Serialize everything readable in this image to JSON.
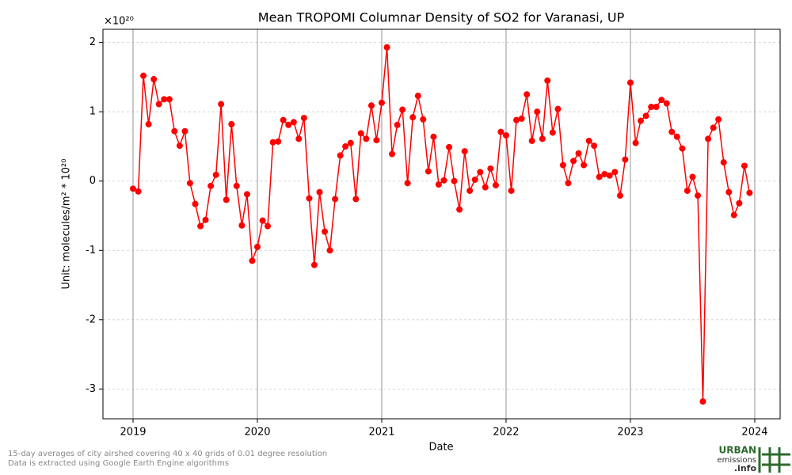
{
  "chart_data": {
    "type": "line",
    "title": "Mean TROPOMI Columnar Density of SO2 for Varanasi, UP",
    "x_label": "Date",
    "y_label": "Unit: molecules/m² * 10²⁰",
    "y_offset_label": "×10²⁰",
    "xlim": [
      2018.758,
      2024.204
    ],
    "xticks": [
      2019,
      2020,
      2021,
      2022,
      2023,
      2024
    ],
    "ylim": [
      -3.43,
      2.19
    ],
    "yticks": [
      -3,
      -2,
      -1,
      0,
      1,
      2
    ],
    "grid": true,
    "x": [
      2019,
      2019.042,
      2019.083,
      2019.125,
      2019.167,
      2019.208,
      2019.25,
      2019.292,
      2019.333,
      2019.375,
      2019.417,
      2019.458,
      2019.5,
      2019.542,
      2019.583,
      2019.625,
      2019.667,
      2019.708,
      2019.75,
      2019.792,
      2019.833,
      2019.875,
      2019.917,
      2019.958,
      2020,
      2020.042,
      2020.083,
      2020.125,
      2020.167,
      2020.208,
      2020.25,
      2020.292,
      2020.333,
      2020.375,
      2020.417,
      2020.458,
      2020.5,
      2020.542,
      2020.583,
      2020.625,
      2020.667,
      2020.708,
      2020.75,
      2020.792,
      2020.833,
      2020.875,
      2020.917,
      2020.958,
      2021,
      2021.042,
      2021.083,
      2021.125,
      2021.167,
      2021.208,
      2021.25,
      2021.292,
      2021.333,
      2021.375,
      2021.417,
      2021.458,
      2021.5,
      2021.542,
      2021.583,
      2021.625,
      2021.667,
      2021.708,
      2021.75,
      2021.792,
      2021.833,
      2021.875,
      2021.917,
      2021.958,
      2022,
      2022.042,
      2022.083,
      2022.125,
      2022.167,
      2022.208,
      2022.25,
      2022.292,
      2022.333,
      2022.375,
      2022.417,
      2022.458,
      2022.5,
      2022.542,
      2022.583,
      2022.625,
      2022.667,
      2022.708,
      2022.75,
      2022.792,
      2022.833,
      2022.875,
      2022.917,
      2022.958,
      2023,
      2023.042,
      2023.083,
      2023.125,
      2023.167,
      2023.208,
      2023.25,
      2023.292,
      2023.333,
      2023.375,
      2023.417,
      2023.458,
      2023.5,
      2023.542,
      2023.583,
      2023.625,
      2023.667,
      2023.708,
      2023.75,
      2023.792,
      2023.833,
      2023.875,
      2023.917,
      2023.958
    ],
    "series": [
      {
        "color": "#ff0000",
        "values": [
          -0.11,
          -0.15,
          1.52,
          0.82,
          1.47,
          1.11,
          1.18,
          1.18,
          0.72,
          0.51,
          0.72,
          -0.03,
          -0.33,
          -0.65,
          -0.56,
          -0.07,
          0.09,
          1.11,
          -0.27,
          0.82,
          -0.07,
          -0.64,
          -0.19,
          -1.15,
          -0.95,
          -0.57,
          -0.65,
          0.56,
          0.57,
          0.88,
          0.81,
          0.85,
          0.61,
          0.91,
          -0.25,
          -1.21,
          -0.16,
          -0.73,
          -1.0,
          -0.26,
          0.37,
          0.5,
          0.55,
          -0.26,
          0.69,
          0.61,
          1.09,
          0.59,
          1.13,
          1.93,
          0.39,
          0.81,
          1.03,
          -0.03,
          0.92,
          1.23,
          0.89,
          0.14,
          0.64,
          -0.05,
          0.01,
          0.49,
          0.0,
          -0.41,
          0.43,
          -0.14,
          0.02,
          0.13,
          -0.09,
          0.18,
          -0.06,
          0.71,
          0.66,
          -0.14,
          0.88,
          0.9,
          1.25,
          0.58,
          1.0,
          0.61,
          1.45,
          0.7,
          1.04,
          0.23,
          -0.03,
          0.29,
          0.4,
          0.23,
          0.58,
          0.51,
          0.06,
          0.1,
          0.08,
          0.13,
          -0.21,
          0.31,
          1.42,
          0.55,
          0.87,
          0.94,
          1.07,
          1.07,
          1.17,
          1.12,
          0.71,
          0.64,
          0.47,
          -0.14,
          0.06,
          -0.21,
          -3.18,
          0.61,
          0.77,
          0.89,
          0.27,
          -0.16,
          -0.49,
          -0.32,
          0.22,
          -0.17
        ]
      }
    ]
  },
  "footer": [
    "15-day averages of city airshed covering 40 x 40 grids of 0.01 degree resolution",
    "Data is extracted using Google Earth Engine algorithms"
  ],
  "logo": {
    "line1": "URBAN",
    "line2": "emissions",
    "line3": ".info"
  }
}
